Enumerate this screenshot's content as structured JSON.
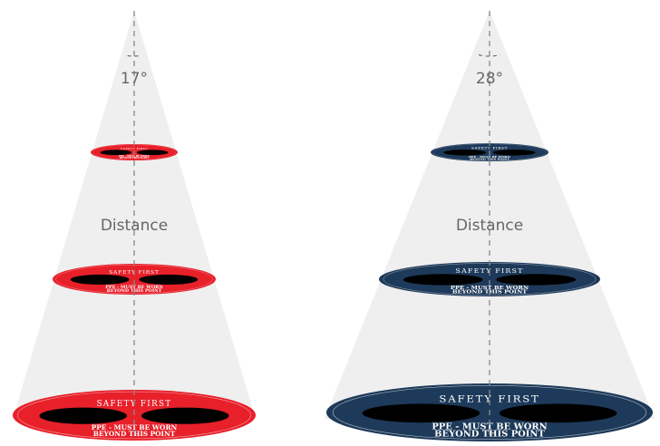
{
  "panels": [
    {
      "angle": "17°",
      "label": "Distance",
      "color": "#e8202a",
      "sign": {
        "top": "SAFETY FIRST",
        "line1": "PPE - MUST BE WORN",
        "line2": "BEYOND THIS POINT"
      }
    },
    {
      "angle": "28°",
      "label": "Distance",
      "color": "#1e3a5a",
      "sign": {
        "top": "SAFETY FIRST",
        "line1": "PPE - MUST BE WORN",
        "line2": "BEYOND THIS POINT"
      }
    }
  ]
}
